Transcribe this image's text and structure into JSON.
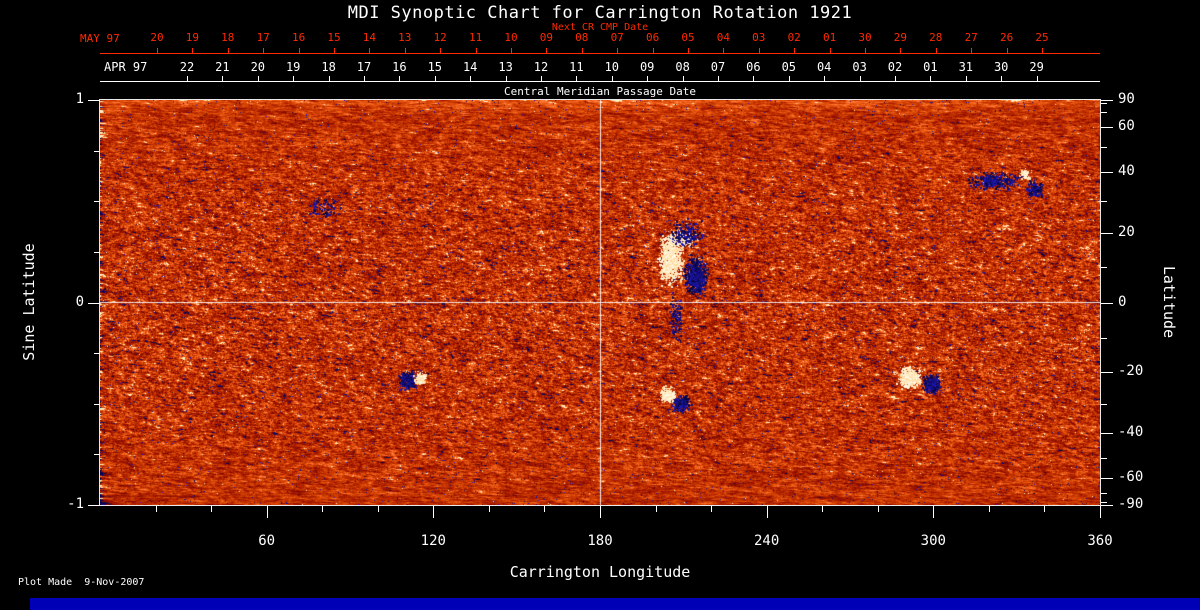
{
  "chart_data": {
    "type": "heatmap",
    "title": "MDI Synoptic Chart for Carrington Rotation 1921",
    "xlabel": "Carrington Longitude",
    "ylabel": "Sine Latitude",
    "y2label": "Latitude",
    "xlim": [
      0,
      360
    ],
    "ylim": [
      -1,
      1
    ],
    "grid": false,
    "colormap": "solar magnetogram: orange-red quiet sun noise, white/cream = positive magnetic flux, dark navy = negative magnetic flux",
    "crosshair": {
      "longitude": 180,
      "sine_latitude": 0
    },
    "axes": {
      "next_cr": {
        "label": "Next CR CMP Date",
        "month": "MAY 97",
        "days": [
          "20",
          "19",
          "18",
          "17",
          "16",
          "15",
          "14",
          "13",
          "12",
          "11",
          "10",
          "09",
          "08",
          "07",
          "06",
          "05",
          "04",
          "03",
          "02",
          "01",
          "30",
          "29",
          "28",
          "27",
          "26",
          "25"
        ]
      },
      "cmp": {
        "label": "Central Meridian Passage Date",
        "month": "APR 97",
        "days": [
          "22",
          "21",
          "20",
          "19",
          "18",
          "17",
          "16",
          "15",
          "14",
          "13",
          "12",
          "11",
          "10",
          "09",
          "08",
          "07",
          "06",
          "05",
          "04",
          "03",
          "02",
          "01",
          "31",
          "30",
          "29"
        ]
      },
      "left": {
        "label": "Sine Latitude",
        "ticks": [
          1,
          0,
          -1
        ]
      },
      "right": {
        "label": "Latitude",
        "ticks": [
          90,
          60,
          40,
          20,
          0,
          -20,
          -40,
          -60,
          -90
        ]
      },
      "bottom": {
        "label": "Carrington Longitude",
        "ticks": [
          60,
          120,
          180,
          240,
          300,
          360
        ]
      }
    },
    "active_regions": [
      {
        "name": "small bipolar region S-hemisphere east",
        "blobs": [
          {
            "polarity": "negative",
            "lon": 110.5,
            "slat": -0.385,
            "rlon": 3.2,
            "rslat": 0.045,
            "n": 320
          },
          {
            "polarity": "positive",
            "lon": 115.5,
            "slat": -0.375,
            "rlon": 2.4,
            "rslat": 0.035,
            "n": 170
          }
        ]
      },
      {
        "name": "large active region complex north of equator",
        "blobs": [
          {
            "polarity": "positive",
            "lon": 205.5,
            "slat": 0.21,
            "rlon": 4.5,
            "rslat": 0.12,
            "n": 1150
          },
          {
            "polarity": "positive",
            "lon": 209.0,
            "slat": 0.31,
            "rlon": 5.5,
            "rslat": 0.05,
            "n": 260
          },
          {
            "polarity": "negative",
            "lon": 214.5,
            "slat": 0.13,
            "rlon": 4.0,
            "rslat": 0.095,
            "n": 980
          },
          {
            "polarity": "negative",
            "lon": 211.0,
            "slat": 0.34,
            "rlon": 6.5,
            "rslat": 0.07,
            "n": 260
          },
          {
            "polarity": "negative",
            "lon": 207.5,
            "slat": -0.08,
            "rlon": 2.6,
            "rslat": 0.13,
            "n": 170
          }
        ]
      },
      {
        "name": "southern bipolar region",
        "blobs": [
          {
            "polarity": "positive",
            "lon": 204.5,
            "slat": -0.455,
            "rlon": 2.8,
            "rslat": 0.04,
            "n": 310
          },
          {
            "polarity": "negative",
            "lon": 209.5,
            "slat": -0.5,
            "rlon": 3.2,
            "rslat": 0.05,
            "n": 350
          }
        ]
      },
      {
        "name": "south-west bipolar region",
        "blobs": [
          {
            "polarity": "positive",
            "lon": 291.5,
            "slat": -0.37,
            "rlon": 4.2,
            "rslat": 0.05,
            "n": 620
          },
          {
            "polarity": "negative",
            "lon": 299.5,
            "slat": -0.405,
            "rlon": 3.4,
            "rslat": 0.05,
            "n": 420
          }
        ]
      },
      {
        "name": "north-west decayed region chain",
        "blobs": [
          {
            "polarity": "negative",
            "lon": 322.0,
            "slat": 0.6,
            "rlon": 9.5,
            "rslat": 0.045,
            "n": 430
          },
          {
            "polarity": "negative",
            "lon": 336.5,
            "slat": 0.56,
            "rlon": 3.6,
            "rslat": 0.04,
            "n": 200
          },
          {
            "polarity": "positive",
            "lon": 333.0,
            "slat": 0.635,
            "rlon": 2.0,
            "rslat": 0.025,
            "n": 120
          }
        ]
      },
      {
        "name": "faint northern speckle group east",
        "blobs": [
          {
            "polarity": "negative",
            "lon": 80.0,
            "slat": 0.47,
            "rlon": 7.0,
            "rslat": 0.06,
            "n": 130
          }
        ]
      }
    ]
  },
  "footer": {
    "plot_made": "Plot Made  9-Nov-2007"
  },
  "colors": {
    "background": "#000000",
    "axis_red": "#ff2a00",
    "text": "#ffffff",
    "bottom_bar": "#0000b6",
    "quiet_sun_orange": "#d84010",
    "negative_flux_navy": "#101080",
    "positive_flux_white": "#fff4d0"
  }
}
